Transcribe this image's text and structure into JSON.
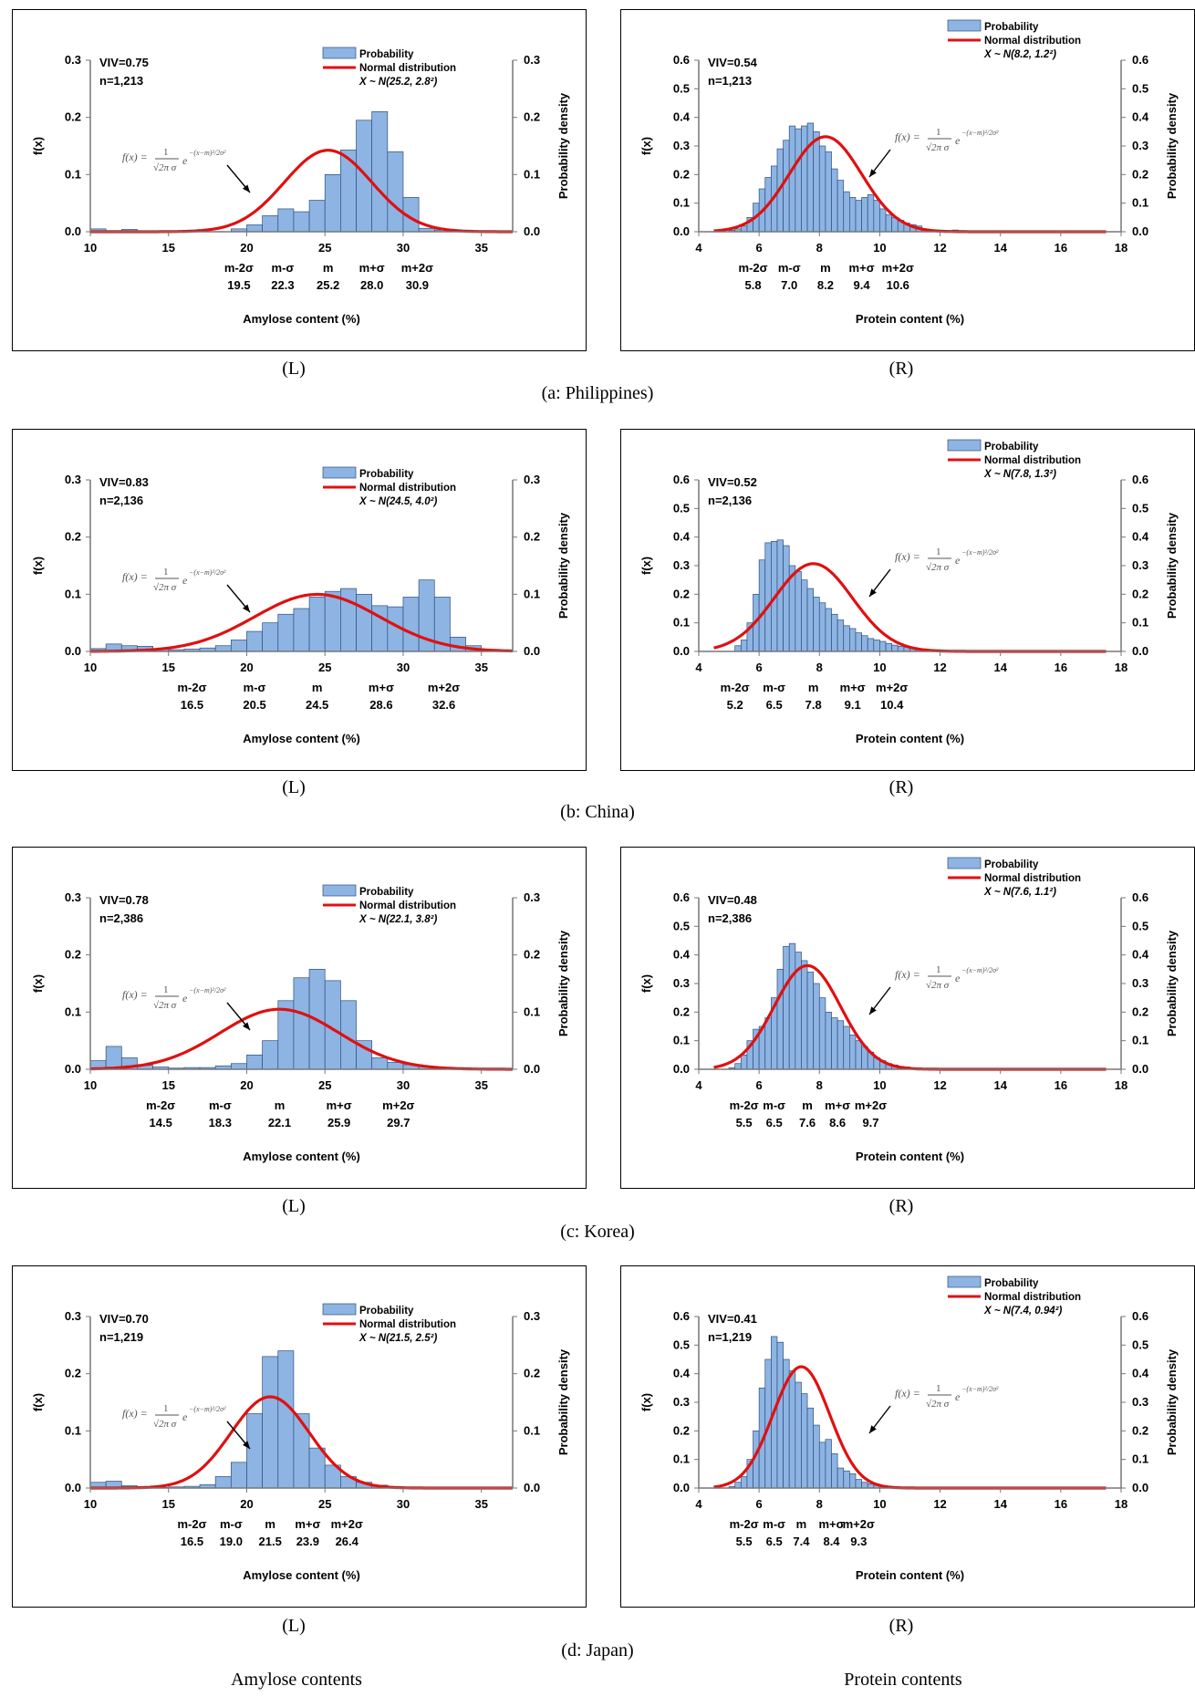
{
  "colors": {
    "bar_fill": "#8db4e2",
    "bar_stroke": "#2f4f7f",
    "curve": "#e01010"
  },
  "labels": {
    "left": "(L)",
    "right": "(R)",
    "footer_left": "Amylose contents",
    "footer_right": "Protein contents",
    "legend_bar": "Probability",
    "legend_curve": "Normal distribution",
    "ylabel_left": "f(x)",
    "ylabel_right": "Probability density",
    "xlabel_amylose": "Amylose content (%)",
    "xlabel_protein": "Protein content (%)"
  },
  "regions": [
    {
      "caption": "(a:  Philippines)"
    },
    {
      "caption": "(b:  China)"
    },
    {
      "caption": "(c:  Korea)"
    },
    {
      "caption": "(d:  Japan)"
    }
  ],
  "chart_data": [
    {
      "id": "a-L",
      "type": "bar",
      "quantity": "amylose",
      "xlim": [
        10,
        37
      ],
      "ylim": [
        0,
        0.3
      ],
      "xticks": [
        10,
        15,
        20,
        25,
        30,
        35
      ],
      "yticks": [
        0,
        0.1,
        0.2,
        0.3
      ],
      "viv": "VIV=0.75",
      "n": "n=1,213",
      "dist": "X ~ N(25.2, 2.8²)",
      "mean": 25.2,
      "sd": 2.8,
      "scale": 1.0,
      "sigma_x": [
        19.5,
        22.3,
        25.2,
        28.0,
        30.9
      ],
      "sigma_labels": [
        "m-2σ",
        "m-σ",
        "m",
        "m+σ",
        "m+2σ"
      ],
      "sigma_values": [
        "19.5",
        "22.3",
        "25.2",
        "28.0",
        "30.9"
      ],
      "bin_start": 10,
      "bin_width": 1,
      "values": [
        0.005,
        0.002,
        0.004,
        0,
        0,
        0,
        0,
        0,
        0,
        0.005,
        0.012,
        0.028,
        0.04,
        0.035,
        0.055,
        0.1,
        0.143,
        0.195,
        0.21,
        0.14,
        0.06,
        0.006,
        0.003,
        0,
        0,
        0,
        0
      ]
    },
    {
      "id": "a-R",
      "type": "bar",
      "quantity": "protein",
      "xlim": [
        4,
        18
      ],
      "ylim": [
        0,
        0.6
      ],
      "xticks": [
        4,
        6,
        8,
        10,
        12,
        14,
        16,
        18
      ],
      "yticks": [
        0,
        0.1,
        0.2,
        0.3,
        0.4,
        0.5,
        0.6
      ],
      "viv": "VIV=0.54",
      "n": "n=1,213",
      "dist": "X ~ N(8.2, 1.2²)",
      "mean": 8.2,
      "sd": 1.2,
      "scale": 1.0,
      "sigma_x": [
        5.8,
        7.0,
        8.2,
        9.4,
        10.6
      ],
      "sigma_labels": [
        "m-2σ",
        "m-σ",
        "m",
        "m+σ",
        "m+2σ"
      ],
      "sigma_values": [
        "5.8",
        "7.0",
        "8.2",
        "9.4",
        "10.6"
      ],
      "bin_start": 5,
      "bin_width": 0.2,
      "values": [
        0.005,
        0.01,
        0.02,
        0.05,
        0.1,
        0.15,
        0.19,
        0.23,
        0.29,
        0.32,
        0.37,
        0.36,
        0.37,
        0.38,
        0.35,
        0.3,
        0.28,
        0.22,
        0.18,
        0.14,
        0.12,
        0.11,
        0.12,
        0.13,
        0.11,
        0.08,
        0.06,
        0.05,
        0.04,
        0.03,
        0.025,
        0.02,
        0.01,
        0.005,
        0.005,
        0,
        0.003,
        0.006,
        0.004,
        0.002
      ]
    },
    {
      "id": "b-L",
      "type": "bar",
      "quantity": "amylose",
      "xlim": [
        10,
        37
      ],
      "ylim": [
        0,
        0.3
      ],
      "xticks": [
        10,
        15,
        20,
        25,
        30,
        35
      ],
      "yticks": [
        0,
        0.1,
        0.2,
        0.3
      ],
      "viv": "VIV=0.83",
      "n": "n=2,136",
      "dist": "X ~ N(24.5, 4.0²)",
      "mean": 24.5,
      "sd": 4.0,
      "scale": 1.0,
      "sigma_x": [
        16.5,
        20.5,
        24.5,
        28.6,
        32.6
      ],
      "sigma_labels": [
        "m-2σ",
        "m-σ",
        "m",
        "m+σ",
        "m+2σ"
      ],
      "sigma_values": [
        "16.5",
        "20.5",
        "24.5",
        "28.6",
        "32.6"
      ],
      "bin_start": 10,
      "bin_width": 1,
      "values": [
        0.005,
        0.013,
        0.01,
        0.009,
        0.005,
        0.003,
        0.004,
        0.006,
        0.01,
        0.02,
        0.035,
        0.05,
        0.065,
        0.075,
        0.095,
        0.105,
        0.11,
        0.1,
        0.08,
        0.078,
        0.095,
        0.125,
        0.095,
        0.025,
        0.01,
        0.003,
        0.002,
        0
      ]
    },
    {
      "id": "b-R",
      "type": "bar",
      "quantity": "protein",
      "xlim": [
        4,
        18
      ],
      "ylim": [
        0,
        0.6
      ],
      "xticks": [
        4,
        6,
        8,
        10,
        12,
        14,
        16,
        18
      ],
      "yticks": [
        0,
        0.1,
        0.2,
        0.3,
        0.4,
        0.5,
        0.6
      ],
      "viv": "VIV=0.52",
      "n": "n=2,136",
      "dist": "X ~ N(7.8, 1.3²)",
      "mean": 7.8,
      "sd": 1.3,
      "scale": 1.0,
      "sigma_x": [
        5.2,
        6.5,
        7.8,
        9.1,
        10.4
      ],
      "sigma_labels": [
        "m-2σ",
        "m-σ",
        "m",
        "m+σ",
        "m+2σ"
      ],
      "sigma_values": [
        "5.2",
        "6.5",
        "7.8",
        "9.1",
        "10.4"
      ],
      "bin_start": 5.2,
      "bin_width": 0.2,
      "values": [
        0.02,
        0.04,
        0.1,
        0.2,
        0.32,
        0.38,
        0.385,
        0.39,
        0.37,
        0.3,
        0.28,
        0.25,
        0.22,
        0.19,
        0.17,
        0.15,
        0.13,
        0.11,
        0.09,
        0.08,
        0.065,
        0.055,
        0.045,
        0.04,
        0.035,
        0.028,
        0.022,
        0.018,
        0.015,
        0.012,
        0.01,
        0.008,
        0.006,
        0.004,
        0.003,
        0.002,
        0.001
      ]
    },
    {
      "id": "c-L",
      "type": "bar",
      "quantity": "amylose",
      "xlim": [
        10,
        37
      ],
      "ylim": [
        0,
        0.3
      ],
      "xticks": [
        10,
        15,
        20,
        25,
        30,
        35
      ],
      "yticks": [
        0,
        0.1,
        0.2,
        0.3
      ],
      "viv": "VIV=0.78",
      "n": "n=2,386",
      "dist": "X ~ N(22.1, 3.8²)",
      "mean": 22.1,
      "sd": 3.8,
      "scale": 1.0,
      "sigma_x": [
        14.5,
        18.3,
        22.1,
        25.9,
        29.7
      ],
      "sigma_labels": [
        "m-2σ",
        "m-σ",
        "m",
        "m+σ",
        "m+2σ"
      ],
      "sigma_values": [
        "14.5",
        "18.3",
        "22.1",
        "25.9",
        "29.7"
      ],
      "bin_start": 10,
      "bin_width": 1,
      "values": [
        0.015,
        0.04,
        0.02,
        0.007,
        0.004,
        0.002,
        0.003,
        0.003,
        0.006,
        0.01,
        0.025,
        0.05,
        0.12,
        0.16,
        0.175,
        0.155,
        0.12,
        0.05,
        0.02,
        0.012,
        0.008,
        0.005,
        0.002,
        0,
        0,
        0,
        0
      ]
    },
    {
      "id": "c-R",
      "type": "bar",
      "quantity": "protein",
      "xlim": [
        4,
        18
      ],
      "ylim": [
        0,
        0.6
      ],
      "xticks": [
        4,
        6,
        8,
        10,
        12,
        14,
        16,
        18
      ],
      "yticks": [
        0,
        0.1,
        0.2,
        0.3,
        0.4,
        0.5,
        0.6
      ],
      "viv": "VIV=0.48",
      "n": "n=2,386",
      "dist": "X ~ N(7.6, 1.1²)",
      "mean": 7.6,
      "sd": 1.1,
      "scale": 1.0,
      "sigma_x": [
        5.5,
        6.5,
        7.6,
        8.6,
        9.7
      ],
      "sigma_labels": [
        "m-2σ",
        "m-σ",
        "m",
        "m+σ",
        "m+2σ"
      ],
      "sigma_values": [
        "5.5",
        "6.5",
        "7.6",
        "8.6",
        "9.7"
      ],
      "bin_start": 5,
      "bin_width": 0.2,
      "values": [
        0.005,
        0.02,
        0.05,
        0.1,
        0.14,
        0.15,
        0.18,
        0.25,
        0.35,
        0.43,
        0.44,
        0.41,
        0.38,
        0.34,
        0.3,
        0.25,
        0.2,
        0.18,
        0.17,
        0.15,
        0.12,
        0.1,
        0.08,
        0.06,
        0.04,
        0.03,
        0.02,
        0.015,
        0.01,
        0.008,
        0.005,
        0.004,
        0.003,
        0.002
      ]
    },
    {
      "id": "d-L",
      "type": "bar",
      "quantity": "amylose",
      "xlim": [
        10,
        37
      ],
      "ylim": [
        0,
        0.3
      ],
      "xticks": [
        10,
        15,
        20,
        25,
        30,
        35
      ],
      "yticks": [
        0,
        0.1,
        0.2,
        0.3
      ],
      "viv": "VIV=0.70",
      "n": "n=1,219",
      "dist": "X ~ N(21.5, 2.5²)",
      "mean": 21.5,
      "sd": 2.5,
      "scale": 1.0,
      "sigma_x": [
        16.5,
        19.0,
        21.5,
        23.9,
        26.4
      ],
      "sigma_labels": [
        "m-2σ",
        "m-σ",
        "m",
        "m+σ",
        "m+2σ"
      ],
      "sigma_values": [
        "16.5",
        "19.0",
        "21.5",
        "23.9",
        "26.4"
      ],
      "bin_start": 10,
      "bin_width": 1,
      "values": [
        0.01,
        0.012,
        0.004,
        0.002,
        0.001,
        0.002,
        0.003,
        0.006,
        0.02,
        0.045,
        0.13,
        0.23,
        0.24,
        0.13,
        0.07,
        0.04,
        0.02,
        0.01,
        0.005,
        0.002,
        0.001,
        0,
        0,
        0,
        0,
        0,
        0
      ]
    },
    {
      "id": "d-R",
      "type": "bar",
      "quantity": "protein",
      "xlim": [
        4,
        18
      ],
      "ylim": [
        0,
        0.6
      ],
      "xticks": [
        4,
        6,
        8,
        10,
        12,
        14,
        16,
        18
      ],
      "yticks": [
        0,
        0.1,
        0.2,
        0.3,
        0.4,
        0.5,
        0.6
      ],
      "viv": "VIV=0.41",
      "n": "n=1,219",
      "dist": "X ~ N(7.4, 0.94²)",
      "mean": 7.4,
      "sd": 0.94,
      "scale": 1.0,
      "sigma_x": [
        5.5,
        6.5,
        7.4,
        8.4,
        9.3
      ],
      "sigma_labels": [
        "m-2σ",
        "m-σ",
        "m",
        "m+σ",
        "m+2σ"
      ],
      "sigma_values": [
        "5.5",
        "6.5",
        "7.4",
        "8.4",
        "9.3"
      ],
      "bin_start": 5,
      "bin_width": 0.2,
      "values": [
        0.005,
        0.02,
        0.04,
        0.1,
        0.2,
        0.35,
        0.45,
        0.53,
        0.51,
        0.45,
        0.41,
        0.37,
        0.33,
        0.28,
        0.22,
        0.16,
        0.17,
        0.12,
        0.07,
        0.06,
        0.05,
        0.03,
        0.02,
        0.015,
        0.01,
        0.008,
        0.005,
        0.003,
        0.002,
        0.002
      ]
    }
  ]
}
